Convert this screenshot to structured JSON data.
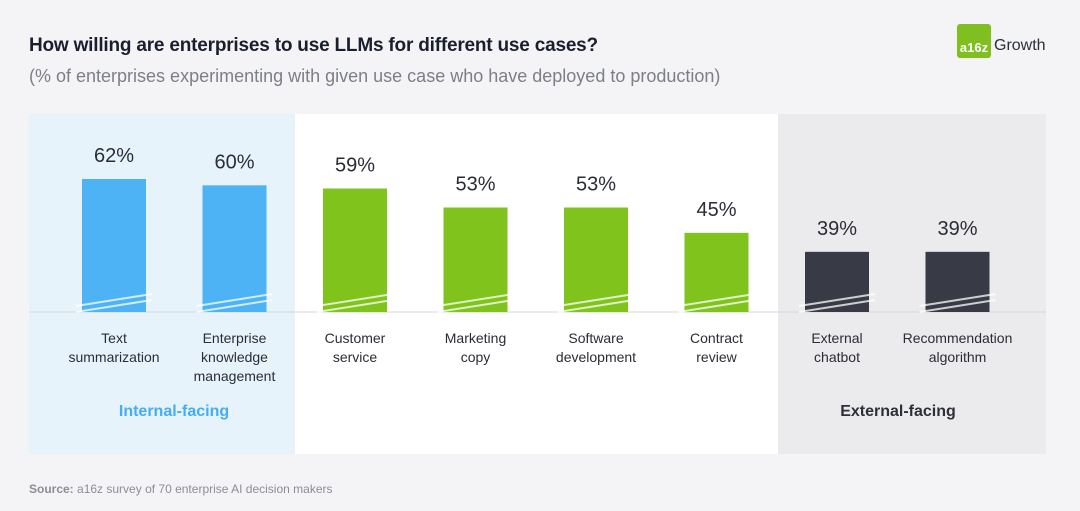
{
  "header": {
    "title": "How willing are enterprises to use LLMs for different use cases?",
    "subtitle": "(% of enterprises experimenting with given use case who have deployed to production)"
  },
  "logo": {
    "mark": "a16z",
    "text": "Growth"
  },
  "source": {
    "label": "Source:",
    "text": "a16z survey of 70 enterprise AI decision makers"
  },
  "colors": {
    "internal": "#4db3f5",
    "customer": "#7fc31c",
    "external": "#383b45",
    "internal_label": "#45aef0",
    "external_label": "#2e3038"
  },
  "chart_data": {
    "type": "bar",
    "title": "How willing are enterprises to use LLMs for different use cases?",
    "subtitle": "(% of enterprises experimenting with given use case who have deployed to production)",
    "unit": "%",
    "ylim": [
      0,
      100
    ],
    "axis_break": true,
    "categories": [
      [
        "Text",
        "summarization"
      ],
      [
        "Enterprise",
        "knowledge",
        "management"
      ],
      [
        "Customer",
        "service"
      ],
      [
        "Marketing",
        "copy"
      ],
      [
        "Software",
        "development"
      ],
      [
        "Contract",
        "review"
      ],
      [
        "External",
        "chatbot"
      ],
      [
        "Recommendation",
        "algorithm"
      ]
    ],
    "values": [
      62,
      60,
      59,
      53,
      53,
      45,
      39,
      39
    ],
    "value_labels": [
      "62%",
      "60%",
      "59%",
      "53%",
      "53%",
      "45%",
      "39%",
      "39%"
    ],
    "groups": [
      {
        "name": "Internal-facing",
        "members": [
          0,
          1
        ],
        "color_key": "internal"
      },
      {
        "name": "",
        "members": [
          2,
          3,
          4,
          5
        ],
        "color_key": "customer"
      },
      {
        "name": "External-facing",
        "members": [
          6,
          7
        ],
        "color_key": "external"
      }
    ]
  }
}
